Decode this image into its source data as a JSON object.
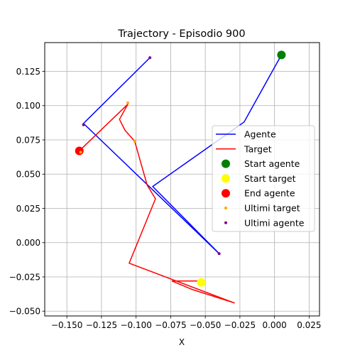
{
  "chart_data": {
    "type": "line",
    "title": "Trajectory - Episodio 900",
    "xlabel": "X",
    "ylabel": "",
    "xlim": [
      -0.166,
      0.0325
    ],
    "ylim": [
      -0.0535,
      0.146
    ],
    "xticks": [
      -0.15,
      -0.125,
      -0.1,
      -0.075,
      -0.05,
      -0.025,
      0.0,
      0.025
    ],
    "xtick_labels": [
      "−0.150",
      "−0.125",
      "−0.100",
      "−0.075",
      "−0.050",
      "−0.025",
      "0.000",
      "0.025"
    ],
    "yticks": [
      -0.05,
      -0.025,
      0.0,
      0.025,
      0.05,
      0.075,
      0.1,
      0.125
    ],
    "ytick_labels": [
      "−0.050",
      "−0.025",
      "0.000",
      "0.025",
      "0.050",
      "0.075",
      "0.100",
      "0.125"
    ],
    "grid": true,
    "legend_position": "center-right",
    "series": [
      {
        "name": "Agente",
        "kind": "line",
        "color": "#0000ff",
        "x": [
          0.005,
          -0.022,
          -0.088,
          -0.04,
          -0.138,
          -0.09
        ],
        "y": [
          0.137,
          0.088,
          0.041,
          -0.008,
          0.087,
          0.135
        ]
      },
      {
        "name": "Target",
        "kind": "line",
        "color": "#ff0000",
        "x": [
          -0.053,
          -0.074,
          -0.06,
          -0.029,
          -0.105,
          -0.086,
          -0.092,
          -0.101,
          -0.108,
          -0.112,
          -0.106,
          -0.141
        ],
        "y": [
          -0.028,
          -0.028,
          -0.034,
          -0.044,
          -0.015,
          0.032,
          0.042,
          0.074,
          0.082,
          0.09,
          0.101,
          0.067
        ]
      },
      {
        "name": "Start agente",
        "kind": "scatter",
        "color": "#008000",
        "size": 12,
        "points": [
          [
            0.005,
            0.137
          ]
        ]
      },
      {
        "name": "Start target",
        "kind": "scatter",
        "color": "#ffff00",
        "size": 12,
        "points": [
          [
            -0.053,
            -0.029
          ]
        ]
      },
      {
        "name": "End agente",
        "kind": "scatter",
        "color": "#ff0000",
        "size": 12,
        "points": [
          [
            -0.141,
            0.067
          ]
        ]
      },
      {
        "name": "Ultimi target",
        "kind": "scatter",
        "color": "#ffa500",
        "size": 4,
        "points": [
          [
            -0.106,
            0.102
          ],
          [
            -0.101,
            0.074
          ],
          [
            -0.14,
            0.066
          ]
        ]
      },
      {
        "name": "Ultimi agente",
        "kind": "scatter",
        "color": "#800080",
        "size": 4,
        "points": [
          [
            -0.09,
            0.135
          ],
          [
            -0.138,
            0.086
          ],
          [
            -0.04,
            -0.008
          ]
        ]
      }
    ]
  }
}
